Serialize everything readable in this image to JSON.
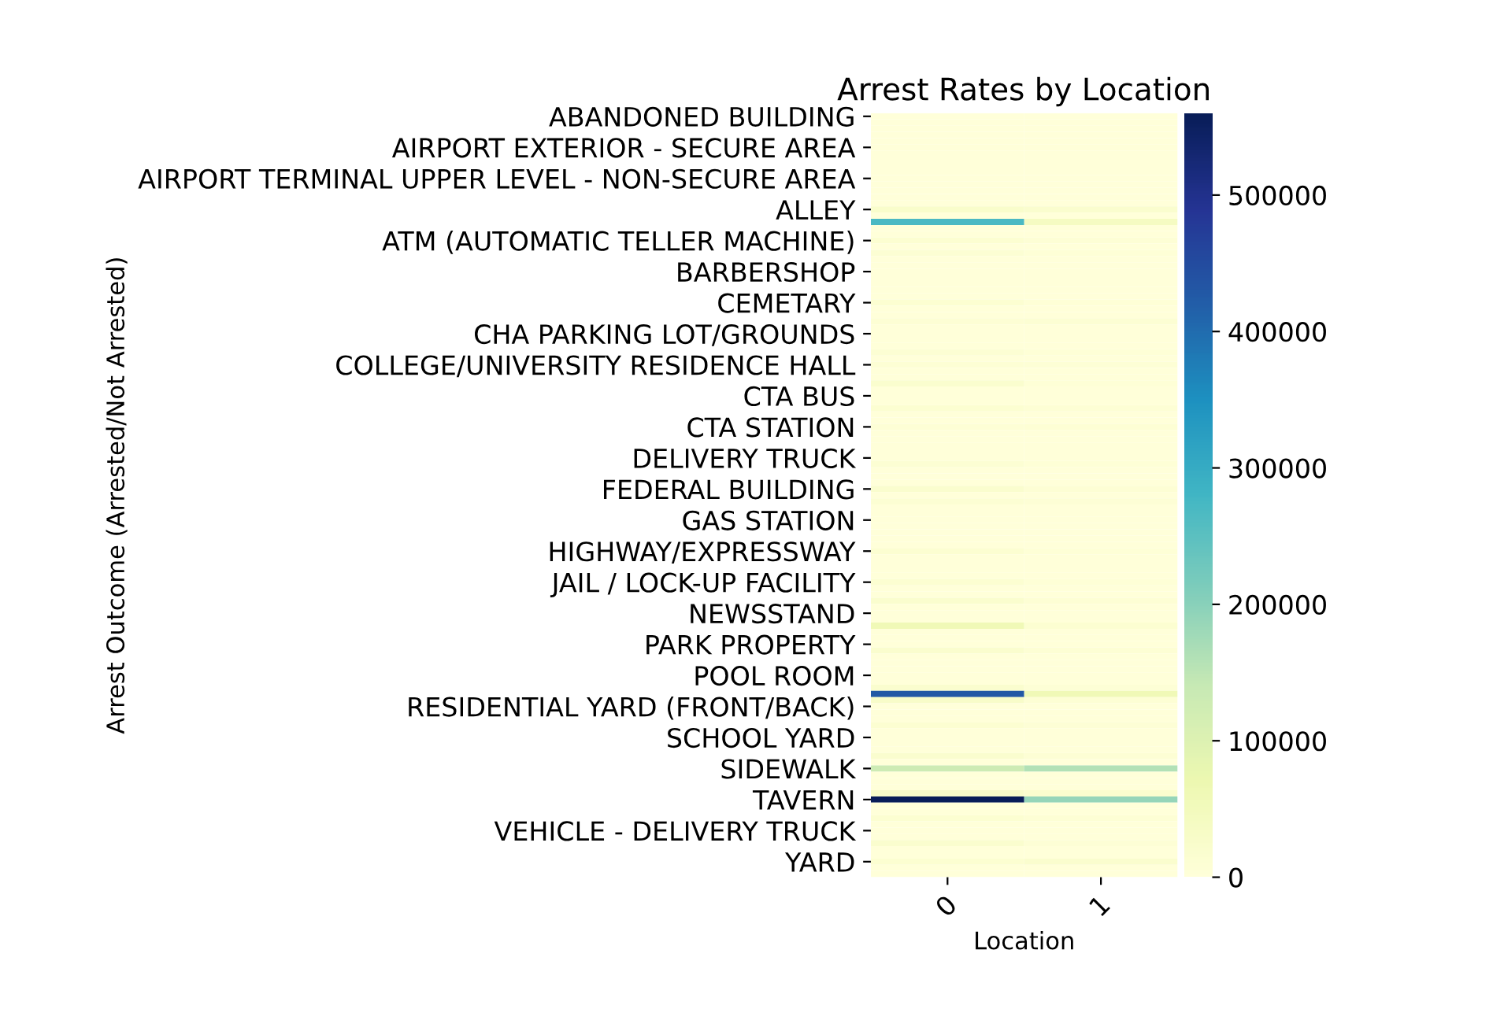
{
  "chart_data": {
    "type": "heatmap",
    "title": "Arrest Rates by Location",
    "xlabel": "Location",
    "ylabel": "Arrest Outcome (Arrested/Not Arrested)",
    "categories": [
      "0",
      "1"
    ],
    "y_categories": [
      "ABANDONED BUILDING",
      null,
      null,
      null,
      null,
      "AIRPORT EXTERIOR - SECURE AREA",
      null,
      null,
      null,
      null,
      "AIRPORT TERMINAL UPPER LEVEL - NON-SECURE AREA",
      null,
      null,
      null,
      null,
      "ALLEY",
      null,
      null,
      null,
      null,
      "ATM (AUTOMATIC TELLER MACHINE)",
      null,
      null,
      null,
      null,
      "BARBERSHOP",
      null,
      null,
      null,
      null,
      "CEMETARY",
      null,
      null,
      null,
      null,
      "CHA PARKING LOT/GROUNDS",
      null,
      null,
      null,
      null,
      "COLLEGE/UNIVERSITY RESIDENCE HALL",
      null,
      null,
      null,
      null,
      "CTA BUS",
      null,
      null,
      null,
      null,
      "CTA STATION",
      null,
      null,
      null,
      null,
      "DELIVERY TRUCK",
      null,
      null,
      null,
      null,
      "FEDERAL BUILDING",
      null,
      null,
      null,
      null,
      "GAS STATION",
      null,
      null,
      null,
      null,
      "HIGHWAY/EXPRESSWAY",
      null,
      null,
      null,
      null,
      "JAIL / LOCK-UP FACILITY",
      null,
      null,
      null,
      null,
      "NEWSSTAND",
      null,
      null,
      null,
      null,
      "PARK PROPERTY",
      null,
      null,
      null,
      null,
      "POOL ROOM",
      null,
      null,
      null,
      null,
      "RESIDENTIAL YARD (FRONT/BACK)",
      null,
      null,
      null,
      null,
      "SCHOOL YARD",
      null,
      null,
      null,
      null,
      "SIDEWALK",
      null,
      null,
      null,
      null,
      "TAVERN",
      null,
      null,
      null,
      null,
      "VEHICLE - DELIVERY TRUCK",
      null,
      null,
      null,
      null,
      "YARD",
      null,
      null
    ],
    "cells": [
      [
        2000,
        1000
      ],
      [
        2000,
        1000
      ],
      [
        2000,
        1000
      ],
      [
        2000,
        1000
      ],
      [
        2000,
        1000
      ],
      [
        2000,
        1000
      ],
      [
        2000,
        1000
      ],
      [
        2000,
        1000
      ],
      [
        2000,
        1000
      ],
      [
        2000,
        1000
      ],
      [
        2000,
        1000
      ],
      [
        2000,
        1000
      ],
      [
        2000,
        1000
      ],
      [
        2000,
        1000
      ],
      [
        2000,
        1000
      ],
      [
        25000,
        20000
      ],
      [
        2000,
        1000
      ],
      [
        270000,
        40000
      ],
      [
        2000,
        1000
      ],
      [
        2000,
        1000
      ],
      [
        15000,
        8000
      ],
      [
        2000,
        1000
      ],
      [
        12000,
        5000
      ],
      [
        2000,
        1000
      ],
      [
        2000,
        1000
      ],
      [
        2000,
        1000
      ],
      [
        2000,
        1000
      ],
      [
        2000,
        1000
      ],
      [
        2000,
        1000
      ],
      [
        2000,
        1000
      ],
      [
        15000,
        5000
      ],
      [
        2000,
        1000
      ],
      [
        2000,
        1000
      ],
      [
        10000,
        12000
      ],
      [
        2000,
        1000
      ],
      [
        2000,
        1000
      ],
      [
        2000,
        1000
      ],
      [
        2000,
        1000
      ],
      [
        12000,
        5000
      ],
      [
        2000,
        1000
      ],
      [
        10000,
        8000
      ],
      [
        2000,
        1000
      ],
      [
        2000,
        1000
      ],
      [
        20000,
        5000
      ],
      [
        2000,
        1000
      ],
      [
        2000,
        1000
      ],
      [
        2000,
        1000
      ],
      [
        15000,
        10000
      ],
      [
        2000,
        1000
      ],
      [
        2000,
        1000
      ],
      [
        8000,
        10000
      ],
      [
        2000,
        1000
      ],
      [
        2000,
        1000
      ],
      [
        2000,
        1000
      ],
      [
        2000,
        1000
      ],
      [
        2000,
        1000
      ],
      [
        12000,
        5000
      ],
      [
        2000,
        1000
      ],
      [
        2000,
        1000
      ],
      [
        2000,
        1000
      ],
      [
        20000,
        10000
      ],
      [
        2000,
        1000
      ],
      [
        12000,
        8000
      ],
      [
        2000,
        1000
      ],
      [
        2000,
        1000
      ],
      [
        2000,
        1000
      ],
      [
        2000,
        1000
      ],
      [
        2000,
        1000
      ],
      [
        2000,
        1000
      ],
      [
        2000,
        1000
      ],
      [
        15000,
        5000
      ],
      [
        2000,
        1000
      ],
      [
        2000,
        1000
      ],
      [
        2000,
        1000
      ],
      [
        2000,
        1000
      ],
      [
        15000,
        5000
      ],
      [
        2000,
        1000
      ],
      [
        2000,
        1000
      ],
      [
        20000,
        10000
      ],
      [
        2000,
        1000
      ],
      [
        2000,
        1000
      ],
      [
        2000,
        1000
      ],
      [
        60000,
        15000
      ],
      [
        2000,
        1000
      ],
      [
        2000,
        1000
      ],
      [
        2000,
        1000
      ],
      [
        20000,
        10000
      ],
      [
        2000,
        1000
      ],
      [
        2000,
        1000
      ],
      [
        2000,
        1000
      ],
      [
        2000,
        1000
      ],
      [
        2000,
        1000
      ],
      [
        20000,
        8000
      ],
      [
        430000,
        60000
      ],
      [
        30000,
        10000
      ],
      [
        2000,
        1000
      ],
      [
        2000,
        1000
      ],
      [
        2000,
        1000
      ],
      [
        15000,
        8000
      ],
      [
        2000,
        1000
      ],
      [
        2000,
        1000
      ],
      [
        2000,
        1000
      ],
      [
        2000,
        1000
      ],
      [
        20000,
        10000
      ],
      [
        2000,
        1000
      ],
      [
        130000,
        160000
      ],
      [
        2000,
        1000
      ],
      [
        2000,
        1000
      ],
      [
        2000,
        1000
      ],
      [
        30000,
        20000
      ],
      [
        560000,
        190000
      ],
      [
        2000,
        1000
      ],
      [
        2000,
        1000
      ],
      [
        15000,
        10000
      ],
      [
        2000,
        1000
      ],
      [
        2000,
        1000
      ],
      [
        2000,
        1000
      ],
      [
        20000,
        8000
      ],
      [
        2000,
        1000
      ],
      [
        2000,
        1000
      ],
      [
        15000,
        20000
      ],
      [
        2000,
        1000
      ],
      [
        2000,
        1000
      ]
    ],
    "clim": [
      0,
      560000
    ],
    "cticks": [
      0,
      100000,
      200000,
      300000,
      400000,
      500000
    ]
  }
}
